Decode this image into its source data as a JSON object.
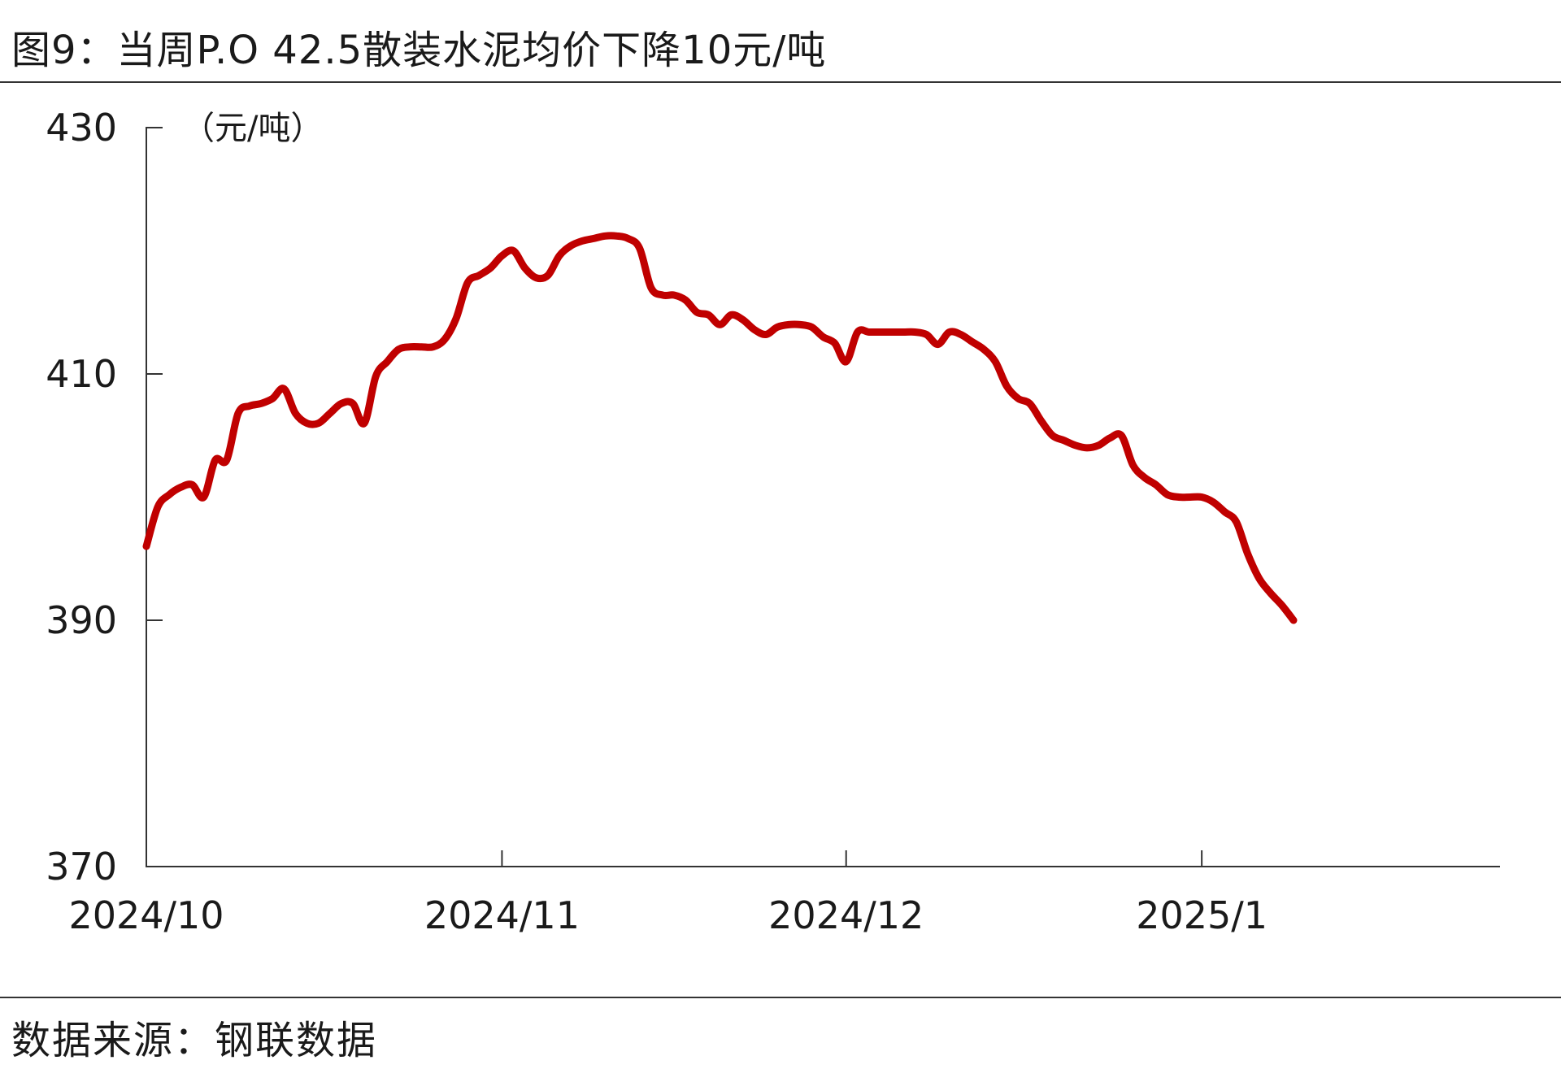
{
  "title": "图9：当周P.O 42.5散装水泥均价下降10元/吨",
  "source": "数据来源：钢联数据",
  "colors": {
    "series": "#c00000",
    "axis": "#333333"
  },
  "chart_data": {
    "type": "line",
    "unit_label": "（元/吨）",
    "ylim": [
      370,
      430
    ],
    "yticks": [
      370,
      390,
      410,
      430
    ],
    "ytick_labels": [
      "370",
      "390",
      "410",
      "430"
    ],
    "xlim": [
      "2024-10-01",
      "2025-01-27"
    ],
    "xticks": [
      "2024-10-01",
      "2024-11-01",
      "2024-12-01",
      "2025-01-01"
    ],
    "xtick_labels": [
      "2024/10",
      "2024/11",
      "2024/12",
      "2025/1"
    ],
    "grid": false,
    "series": [
      {
        "color": "#c00000",
        "x": [
          "2024-10-01",
          "2024-10-02",
          "2024-10-03",
          "2024-10-04",
          "2024-10-05",
          "2024-10-06",
          "2024-10-07",
          "2024-10-08",
          "2024-10-09",
          "2024-10-10",
          "2024-10-11",
          "2024-10-12",
          "2024-10-13",
          "2024-10-14",
          "2024-10-15",
          "2024-10-16",
          "2024-10-17",
          "2024-10-18",
          "2024-10-19",
          "2024-10-20",
          "2024-10-21",
          "2024-10-22",
          "2024-10-23",
          "2024-10-24",
          "2024-10-25",
          "2024-10-26",
          "2024-10-27",
          "2024-10-28",
          "2024-10-29",
          "2024-10-30",
          "2024-10-31",
          "2024-11-01",
          "2024-11-02",
          "2024-11-03",
          "2024-11-04",
          "2024-11-05",
          "2024-11-06",
          "2024-11-07",
          "2024-11-08",
          "2024-11-09",
          "2024-11-10",
          "2024-11-11",
          "2024-11-12",
          "2024-11-13",
          "2024-11-14",
          "2024-11-15",
          "2024-11-16",
          "2024-11-17",
          "2024-11-18",
          "2024-11-19",
          "2024-11-20",
          "2024-11-21",
          "2024-11-22",
          "2024-11-23",
          "2024-11-24",
          "2024-11-25",
          "2024-11-26",
          "2024-11-27",
          "2024-11-28",
          "2024-11-29",
          "2024-11-30",
          "2024-12-01",
          "2024-12-02",
          "2024-12-03",
          "2024-12-04",
          "2024-12-05",
          "2024-12-06",
          "2024-12-07",
          "2024-12-08",
          "2024-12-09",
          "2024-12-10",
          "2024-12-11",
          "2024-12-12",
          "2024-12-13",
          "2024-12-14",
          "2024-12-15",
          "2024-12-16",
          "2024-12-17",
          "2024-12-18",
          "2024-12-19",
          "2024-12-20",
          "2024-12-21",
          "2024-12-22",
          "2024-12-23",
          "2024-12-24",
          "2024-12-25",
          "2024-12-26",
          "2024-12-27",
          "2024-12-28",
          "2024-12-29",
          "2024-12-30",
          "2024-12-31",
          "2025-01-01",
          "2025-01-02",
          "2025-01-03",
          "2025-01-04",
          "2025-01-05",
          "2025-01-06",
          "2025-01-07",
          "2025-01-08",
          "2025-01-09"
        ],
        "values": [
          396.0,
          399.2,
          400.2,
          400.8,
          401.0,
          400.0,
          403.0,
          403.0,
          406.8,
          407.4,
          407.6,
          408.0,
          408.8,
          406.8,
          406.0,
          406.0,
          406.8,
          407.6,
          407.6,
          406.0,
          409.8,
          411.0,
          412.0,
          412.2,
          412.2,
          412.2,
          412.8,
          414.5,
          417.4,
          418.0,
          418.6,
          419.6,
          420.0,
          418.6,
          417.8,
          418.0,
          419.6,
          420.4,
          420.8,
          421.0,
          421.2,
          421.2,
          421.0,
          420.2,
          417.0,
          416.4,
          416.4,
          416.0,
          415.0,
          414.8,
          414.0,
          414.8,
          414.4,
          413.6,
          413.2,
          413.8,
          414.0,
          414.0,
          413.8,
          413.0,
          412.5,
          411.0,
          413.4,
          413.4,
          413.4,
          413.4,
          413.4,
          413.4,
          413.2,
          412.4,
          413.4,
          413.2,
          412.6,
          412.0,
          411.0,
          409.0,
          408.0,
          407.6,
          406.2,
          405.0,
          404.6,
          404.2,
          404.0,
          404.2,
          404.8,
          405.0,
          402.6,
          401.6,
          401.0,
          400.2,
          400.0,
          400.0,
          400.0,
          399.6,
          398.8,
          398.0,
          395.4,
          393.4,
          392.2,
          391.2,
          390.0
        ]
      }
    ]
  }
}
